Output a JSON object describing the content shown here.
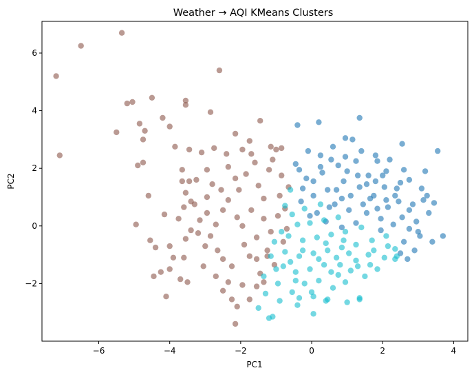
{
  "chart_data": {
    "type": "scatter",
    "title": "Weather → AQI KMeans Clusters",
    "xlabel": "PC1",
    "ylabel": "PC2",
    "xlim": [
      -7.6,
      4.4
    ],
    "ylim": [
      -4.0,
      7.1
    ],
    "xticks": [
      -6,
      -4,
      -2,
      0,
      2,
      4
    ],
    "yticks": [
      -2,
      0,
      2,
      4,
      6
    ],
    "xtick_labels": [
      "−6",
      "−4",
      "−2",
      "0",
      "2",
      "4"
    ],
    "ytick_labels": [
      "−2",
      "0",
      "2",
      "4",
      "6"
    ],
    "grid": false,
    "legend": "none",
    "marker_alpha": 0.6,
    "series": [
      {
        "color": "#8c564b",
        "points": [
          [
            -7.2,
            5.2
          ],
          [
            -7.1,
            2.45
          ],
          [
            -6.5,
            6.25
          ],
          [
            -5.35,
            6.7
          ],
          [
            -5.5,
            3.25
          ],
          [
            -5.2,
            4.25
          ],
          [
            -5.05,
            4.3
          ],
          [
            -4.85,
            3.55
          ],
          [
            -4.75,
            3.0
          ],
          [
            -4.7,
            3.3
          ],
          [
            -4.9,
            2.1
          ],
          [
            -4.75,
            2.2
          ],
          [
            -4.95,
            0.05
          ],
          [
            -4.6,
            1.05
          ],
          [
            -4.5,
            4.45
          ],
          [
            -4.2,
            3.75
          ],
          [
            -4.0,
            3.45
          ],
          [
            -3.85,
            2.75
          ],
          [
            -3.65,
            1.95
          ],
          [
            -3.65,
            1.55
          ],
          [
            -3.45,
            2.65
          ],
          [
            -3.45,
            1.55
          ],
          [
            -3.55,
            1.15
          ],
          [
            -3.3,
            0.75
          ],
          [
            -3.1,
            2.55
          ],
          [
            -2.95,
            1.95
          ],
          [
            -3.4,
            -0.15
          ],
          [
            -3.6,
            -1.1
          ],
          [
            -4.25,
            -1.6
          ],
          [
            -4.4,
            -0.75
          ],
          [
            -4.1,
            -2.45
          ],
          [
            -3.7,
            -1.85
          ],
          [
            -3.5,
            -1.95
          ],
          [
            -3.55,
            -0.45
          ],
          [
            -2.85,
            3.95
          ],
          [
            -2.75,
            2.7
          ],
          [
            -2.6,
            5.4
          ],
          [
            -3.55,
            4.35
          ],
          [
            -3.55,
            4.2
          ],
          [
            -2.35,
            2.05
          ],
          [
            -2.15,
            3.2
          ],
          [
            -1.95,
            2.65
          ],
          [
            -1.45,
            3.65
          ],
          [
            -1.15,
            2.75
          ],
          [
            -1.0,
            2.65
          ],
          [
            -0.85,
            2.7
          ],
          [
            -1.75,
            2.95
          ],
          [
            -1.7,
            2.5
          ],
          [
            -2.5,
            -1.15
          ],
          [
            -2.7,
            -1.75
          ],
          [
            -2.5,
            -2.25
          ],
          [
            -2.25,
            -2.55
          ],
          [
            -2.1,
            -2.8
          ],
          [
            -2.15,
            -3.4
          ],
          [
            -1.95,
            -2.05
          ],
          [
            -1.55,
            -2.1
          ],
          [
            -1.75,
            -1.05
          ],
          [
            -1.25,
            -0.85
          ],
          [
            -1.35,
            -1.95
          ],
          [
            -4.45,
            -1.75
          ],
          [
            -4.55,
            -0.5
          ],
          [
            -4.0,
            -1.5
          ],
          [
            -3.9,
            -1.1
          ],
          [
            -3.2,
            -0.25
          ],
          [
            -2.85,
            -0.35
          ],
          [
            -2.35,
            0.9
          ],
          [
            -2.8,
            1.45
          ],
          [
            -2.95,
            1.0
          ],
          [
            -2.15,
            1.65
          ],
          [
            -2.05,
            1.25
          ],
          [
            -1.85,
            1.8
          ],
          [
            -1.5,
            1.4
          ],
          [
            -1.2,
            1.95
          ],
          [
            -0.85,
            1.75
          ],
          [
            -0.9,
            1.05
          ],
          [
            -0.75,
            0.6
          ],
          [
            -1.35,
            0.25
          ],
          [
            -1.7,
            0.55
          ],
          [
            -2.1,
            0.3
          ],
          [
            -2.5,
            0.55
          ],
          [
            -2.7,
            0.05
          ],
          [
            -3.0,
            -0.7
          ],
          [
            -2.65,
            -0.85
          ],
          [
            -2.25,
            -1.4
          ],
          [
            -1.9,
            -0.65
          ],
          [
            -1.55,
            -0.4
          ],
          [
            -1.15,
            -0.2
          ],
          [
            -0.8,
            -0.55
          ],
          [
            -1.05,
            -1.35
          ],
          [
            -1.45,
            -1.65
          ],
          [
            -3.75,
            0.25
          ],
          [
            -4.15,
            0.4
          ],
          [
            -4.0,
            -0.7
          ],
          [
            -3.25,
            1.6
          ],
          [
            -2.55,
            1.25
          ],
          [
            -1.95,
            0.0
          ],
          [
            -1.35,
            0.95
          ],
          [
            -0.95,
            0.35
          ],
          [
            -0.7,
            -0.1
          ],
          [
            -3.05,
            -1.4
          ],
          [
            -2.35,
            -1.95
          ],
          [
            -1.75,
            -2.55
          ],
          [
            -1.25,
            -1.05
          ],
          [
            -2.95,
            0.45
          ],
          [
            -3.4,
            0.85
          ],
          [
            -2.4,
            2.5
          ],
          [
            -1.6,
            2.2
          ],
          [
            -1.1,
            2.3
          ],
          [
            -0.65,
            1.35
          ],
          [
            -3.6,
            0.65
          ],
          [
            -3.15,
            0.2
          ],
          [
            -1.55,
            -1.15
          ]
        ]
      },
      {
        "color": "#1f77b4",
        "points": [
          [
            -0.4,
            3.5
          ],
          [
            0.2,
            3.6
          ],
          [
            1.35,
            3.75
          ],
          [
            2.55,
            2.85
          ],
          [
            3.55,
            2.6
          ],
          [
            3.7,
            -0.35
          ],
          [
            3.4,
            -0.55
          ],
          [
            3.3,
            0.45
          ],
          [
            3.25,
            1.05
          ],
          [
            2.95,
            0.15
          ],
          [
            2.75,
            0.55
          ],
          [
            2.4,
            1.3
          ],
          [
            2.1,
            1.9
          ],
          [
            1.8,
            2.45
          ],
          [
            1.15,
            3.0
          ],
          [
            0.95,
            3.05
          ],
          [
            0.6,
            2.75
          ],
          [
            0.25,
            2.45
          ],
          [
            -0.1,
            2.6
          ],
          [
            -0.45,
            2.15
          ],
          [
            -0.15,
            1.65
          ],
          [
            0.3,
            1.85
          ],
          [
            0.75,
            2.1
          ],
          [
            1.25,
            2.25
          ],
          [
            1.6,
            1.75
          ],
          [
            2.05,
            1.35
          ],
          [
            2.45,
            0.85
          ],
          [
            2.85,
            0.75
          ],
          [
            3.15,
            0.9
          ],
          [
            2.55,
            0.3
          ],
          [
            2.15,
            0.65
          ],
          [
            1.75,
            1.05
          ],
          [
            1.35,
            1.35
          ],
          [
            0.9,
            1.55
          ],
          [
            0.45,
            1.25
          ],
          [
            0.05,
            1.05
          ],
          [
            -0.3,
            0.85
          ],
          [
            0.15,
            0.45
          ],
          [
            0.65,
            0.75
          ],
          [
            1.05,
            0.55
          ],
          [
            1.55,
            0.45
          ],
          [
            1.95,
            0.25
          ],
          [
            2.3,
            0.05
          ],
          [
            2.75,
            -0.1
          ],
          [
            1.25,
            0.1
          ],
          [
            0.85,
            -0.05
          ],
          [
            0.4,
            0.15
          ],
          [
            -0.05,
            0.35
          ],
          [
            1.65,
            0.95
          ],
          [
            2.0,
            1.75
          ],
          [
            1.0,
            1.9
          ],
          [
            0.55,
            2.3
          ],
          [
            2.75,
            1.6
          ],
          [
            3.1,
            1.3
          ],
          [
            1.4,
            2.6
          ],
          [
            2.6,
            -0.55
          ],
          [
            2.9,
            -0.85
          ],
          [
            3.05,
            -0.35
          ],
          [
            0.25,
            2.05
          ],
          [
            -0.25,
            1.3
          ],
          [
            1.85,
            0.6
          ],
          [
            2.35,
            1.05
          ],
          [
            1.55,
            1.45
          ],
          [
            0.7,
            1.25
          ],
          [
            1.1,
            1.05
          ],
          [
            2.6,
            1.95
          ],
          [
            3.2,
            1.9
          ],
          [
            2.2,
            2.3
          ],
          [
            1.85,
            2.25
          ],
          [
            0.95,
            2.4
          ],
          [
            3.0,
            -0.2
          ],
          [
            2.5,
            -0.95
          ],
          [
            2.7,
            -1.15
          ],
          [
            0.05,
            1.55
          ],
          [
            -0.35,
            1.95
          ],
          [
            0.85,
            0.95
          ],
          [
            1.45,
            0.75
          ],
          [
            2.1,
            0.9
          ],
          [
            2.5,
            1.5
          ],
          [
            1.3,
            1.75
          ],
          [
            1.8,
            1.55
          ],
          [
            0.5,
            0.65
          ],
          [
            1.95,
            -0.15
          ],
          [
            3.45,
            0.8
          ]
        ]
      },
      {
        "color": "#17becf",
        "points": [
          [
            0.05,
            -3.05
          ],
          [
            -1.2,
            -3.2
          ],
          [
            -1.1,
            -3.15
          ],
          [
            -1.5,
            -2.85
          ],
          [
            -0.4,
            -2.75
          ],
          [
            0.4,
            -2.6
          ],
          [
            1.0,
            -2.65
          ],
          [
            1.35,
            -2.5
          ],
          [
            1.35,
            -2.55
          ],
          [
            0.95,
            -1.95
          ],
          [
            0.6,
            -2.15
          ],
          [
            0.2,
            -1.9
          ],
          [
            -0.2,
            -2.0
          ],
          [
            -0.55,
            -2.3
          ],
          [
            -0.95,
            -2.0
          ],
          [
            -1.35,
            -1.75
          ],
          [
            -0.8,
            -1.4
          ],
          [
            -0.45,
            -1.6
          ],
          [
            -0.05,
            -1.5
          ],
          [
            0.35,
            -1.35
          ],
          [
            0.8,
            -1.35
          ],
          [
            1.25,
            -1.2
          ],
          [
            1.65,
            -1.35
          ],
          [
            2.05,
            -1.1
          ],
          [
            2.35,
            -0.8
          ],
          [
            2.1,
            -0.35
          ],
          [
            1.7,
            -0.5
          ],
          [
            1.25,
            -0.65
          ],
          [
            0.85,
            -0.75
          ],
          [
            0.45,
            -0.85
          ],
          [
            0.05,
            -0.95
          ],
          [
            -0.35,
            -1.05
          ],
          [
            -0.75,
            -0.9
          ],
          [
            -1.05,
            -0.55
          ],
          [
            -0.65,
            -0.35
          ],
          [
            -0.25,
            -0.5
          ],
          [
            0.15,
            -0.4
          ],
          [
            0.55,
            -0.3
          ],
          [
            0.95,
            -0.2
          ],
          [
            1.4,
            -0.05
          ],
          [
            -0.4,
            0.05
          ],
          [
            -0.05,
            0.1
          ],
          [
            0.35,
            0.2
          ],
          [
            0.75,
            0.3
          ],
          [
            -0.55,
            0.4
          ],
          [
            -0.2,
            0.6
          ],
          [
            0.25,
            0.75
          ],
          [
            -0.75,
            0.7
          ],
          [
            -0.6,
            1.25
          ],
          [
            -0.35,
            -2.5
          ],
          [
            0.0,
            -2.3
          ],
          [
            0.45,
            -2.55
          ],
          [
            0.75,
            -1.7
          ],
          [
            1.1,
            -1.55
          ],
          [
            1.5,
            -1.75
          ],
          [
            1.85,
            -1.5
          ],
          [
            2.35,
            -1.15
          ],
          [
            2.15,
            -0.7
          ],
          [
            1.75,
            -0.85
          ],
          [
            1.05,
            -0.95
          ],
          [
            0.2,
            -1.15
          ],
          [
            -0.6,
            -1.25
          ],
          [
            -1.0,
            -1.5
          ],
          [
            -1.3,
            -2.35
          ],
          [
            -0.9,
            -2.6
          ],
          [
            -1.15,
            -1.05
          ],
          [
            -0.85,
            -0.2
          ],
          [
            0.55,
            -1.6
          ],
          [
            0.05,
            -2.45
          ],
          [
            1.6,
            -1.0
          ],
          [
            0.9,
            -0.5
          ],
          [
            0.4,
            -0.6
          ],
          [
            -0.25,
            -0.85
          ],
          [
            1.3,
            -1.4
          ],
          [
            0.7,
            -1.1
          ],
          [
            -0.45,
            -1.9
          ],
          [
            2.4,
            -1.05
          ]
        ]
      }
    ]
  }
}
